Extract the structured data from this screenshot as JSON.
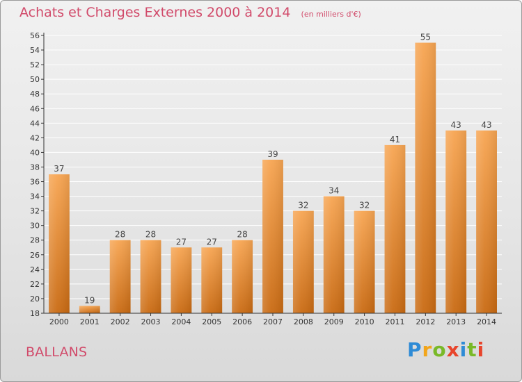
{
  "header": {
    "title": "Achats et Charges Externes 2000 à 2014",
    "unit": "(en milliers d'€)"
  },
  "commune": "BALLANS",
  "logo": {
    "text": "Proxiti",
    "colors": [
      "#2e8bd6",
      "#f2a51a",
      "#79b928",
      "#e8452c",
      "#2e8bd6",
      "#79b928",
      "#e8452c"
    ]
  },
  "chart_data": {
    "type": "bar",
    "title": "Achats et Charges Externes 2000 à 2014",
    "subtitle": "(en milliers d'€)",
    "categories": [
      "2000",
      "2001",
      "2002",
      "2003",
      "2004",
      "2005",
      "2006",
      "2007",
      "2008",
      "2009",
      "2010",
      "2011",
      "2012",
      "2013",
      "2014"
    ],
    "values": [
      37,
      19,
      28,
      28,
      27,
      27,
      28,
      39,
      32,
      34,
      32,
      41,
      55,
      43,
      43
    ],
    "ylim": [
      18,
      56
    ],
    "yticks": [
      18,
      20,
      22,
      24,
      26,
      28,
      30,
      32,
      34,
      36,
      38,
      40,
      42,
      44,
      46,
      48,
      50,
      52,
      54,
      56
    ],
    "grid": true,
    "colors": {
      "bar_light": "#f7a552",
      "bar_dark": "#c96a12",
      "grid": "#ffffff",
      "axis": "#333333"
    }
  }
}
